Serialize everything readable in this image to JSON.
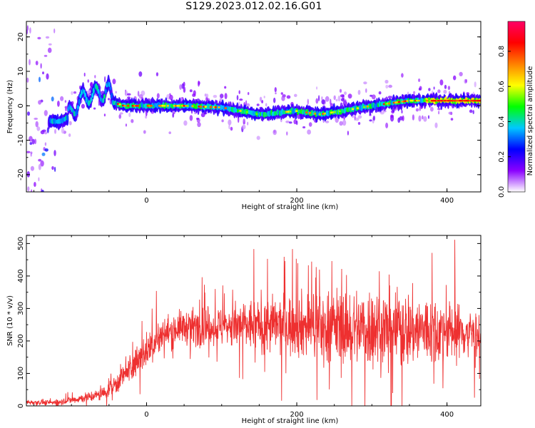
{
  "title": "S129.2023.012.02.16.G01",
  "chart_data": [
    {
      "type": "heatmap",
      "xlabel": "Height of straight line (km)",
      "ylabel": "Frequency (Hz)",
      "xlim": [
        -160,
        445
      ],
      "ylim": [
        -25,
        24.5
      ],
      "xticks": [
        0,
        200,
        400
      ],
      "yticks": [
        -20,
        -10,
        0,
        10,
        20
      ],
      "ridge": {
        "x": [
          -125,
          -115,
          -105,
          -95,
          -85,
          -75,
          -65,
          -58,
          -52,
          -45,
          -30,
          0,
          50,
          100,
          150,
          200,
          230,
          260,
          300,
          350,
          400,
          445
        ],
        "freq": [
          -4.5,
          -4.5,
          -3.5,
          0,
          2,
          3.5,
          3,
          4,
          5,
          1,
          0,
          0,
          0,
          -0.5,
          -2.5,
          -1.5,
          -2.5,
          -1.5,
          0,
          1.5,
          1.5,
          1.5
        ]
      },
      "colorbar": {
        "label": "Normalized spectral amplitude",
        "ticks": [
          0.0,
          0.2,
          0.4,
          0.6,
          0.8
        ],
        "tick_labels": [
          "0.0",
          "0.2",
          "0.4",
          "0.6",
          "0.8"
        ],
        "range": [
          0,
          0.97
        ],
        "colors": [
          "#ffffff",
          "#8a00ff",
          "#0000ff",
          "#00c8ff",
          "#00ff00",
          "#ffff00",
          "#ff8000",
          "#ff0000",
          "#ff0066"
        ]
      }
    },
    {
      "type": "line",
      "xlabel": "Height of straight line (km)",
      "ylabel": "SNR (10 * v/v)",
      "xlim": [
        -160,
        445
      ],
      "ylim": [
        0,
        525
      ],
      "xticks": [
        0,
        200,
        400
      ],
      "yticks": [
        0,
        100,
        200,
        300,
        400,
        500
      ],
      "color": "#ee3030",
      "envelope": {
        "x": [
          -160,
          -125,
          -100,
          -60,
          -40,
          -20,
          0,
          20,
          40,
          60,
          100,
          150,
          200,
          250,
          300,
          350,
          400,
          445
        ],
        "mean": [
          12,
          10,
          18,
          35,
          70,
          120,
          170,
          215,
          240,
          245,
          245,
          248,
          248,
          245,
          240,
          235,
          230,
          225
        ],
        "spread": [
          8,
          8,
          12,
          20,
          35,
          45,
          55,
          55,
          50,
          55,
          65,
          85,
          100,
          115,
          130,
          120,
          100,
          70
        ]
      }
    }
  ]
}
